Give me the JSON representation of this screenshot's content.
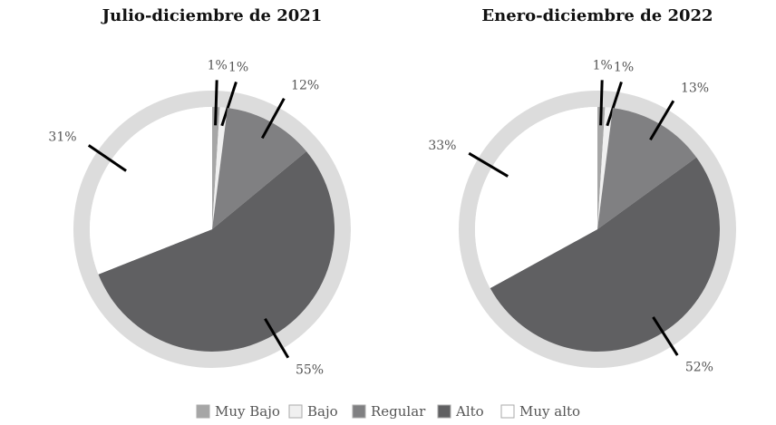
{
  "chart_data": [
    {
      "type": "pie",
      "title": "Julio-diciembre de 2021",
      "categories": [
        "Muy Bajo",
        "Bajo",
        "Regular",
        "Alto",
        "Muy alto"
      ],
      "values": [
        1,
        1,
        12,
        55,
        31
      ],
      "value_labels": [
        "1%",
        "1%",
        "12%",
        "55%",
        "31%"
      ],
      "colors": [
        "#a6a6a6",
        "#f0f0f0",
        "#808082",
        "#606062",
        "#ffffff"
      ]
    },
    {
      "type": "pie",
      "title": "Enero-diciembre de 2022",
      "categories": [
        "Muy Bajo",
        "Bajo",
        "Regular",
        "Alto",
        "Muy alto"
      ],
      "values": [
        1,
        1,
        13,
        52,
        33
      ],
      "value_labels": [
        "1%",
        "1%",
        "13%",
        "52%",
        "33%"
      ],
      "colors": [
        "#a6a6a6",
        "#f0f0f0",
        "#808082",
        "#606062",
        "#ffffff"
      ]
    }
  ]
}
